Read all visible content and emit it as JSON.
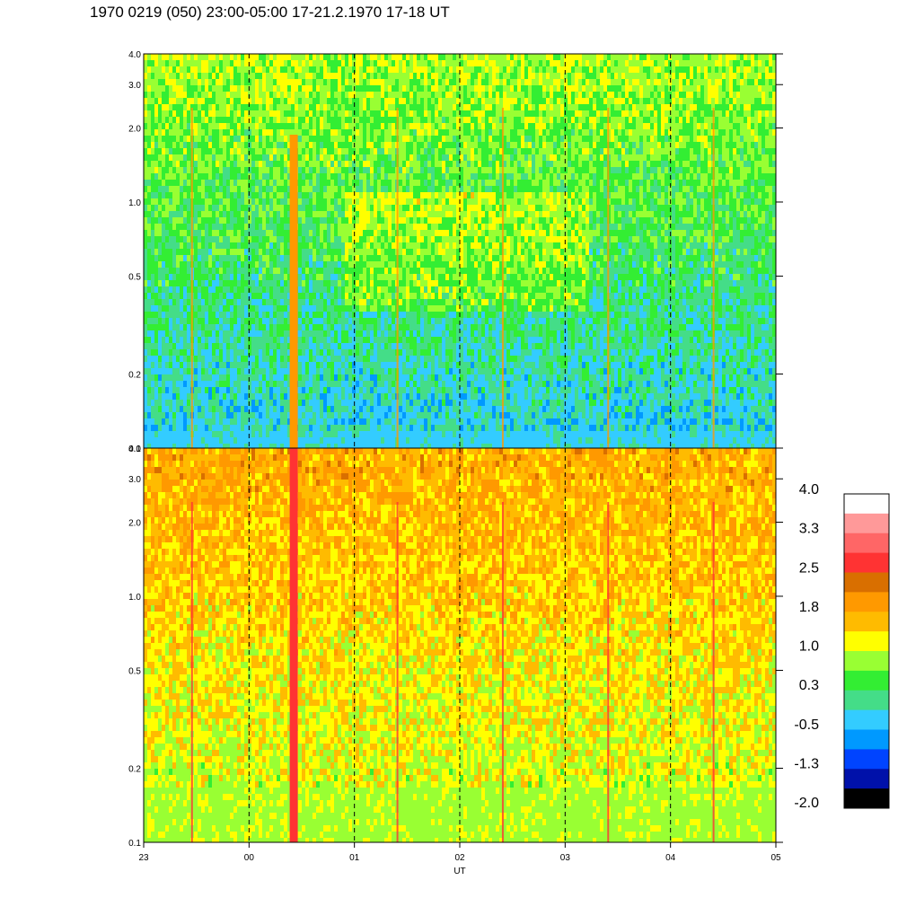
{
  "title": "1970 0219 (050) 23:00-05:00 17-21.2.1970  17-18 UT",
  "chart_data": {
    "type": "heatmap",
    "title": "1970 0219 (050) 23:00-05:00 17-21.2.1970  17-18 UT",
    "xlabel": "UT",
    "x_ticks": [
      "23",
      "00",
      "01",
      "02",
      "03",
      "04",
      "05"
    ],
    "x_range_hours": [
      23,
      29
    ],
    "grid": "dashed vertical lines at each hour",
    "panels": [
      {
        "name": "upper",
        "y_scale": "log",
        "ylim": [
          0.1,
          4.0
        ],
        "y_ticks": [
          {
            "value": 0.1,
            "label": "0.1"
          },
          {
            "value": 0.2,
            "label": "0.2"
          },
          {
            "value": 0.5,
            "label": "0.5"
          },
          {
            "value": 1.0,
            "label": "1.0"
          },
          {
            "value": 2.0,
            "label": "2.0"
          },
          {
            "value": 3.0,
            "label": "3.0"
          },
          {
            "value": 4.0,
            "label": "4.0"
          }
        ],
        "dominant_levels": "-0.5 to 1.0 (cyan/green), yellow patches near 01-03 UT at 0.3-0.8",
        "highlight_streak_ut": 23.4
      },
      {
        "name": "lower",
        "y_scale": "log",
        "ylim": [
          0.1,
          4.0
        ],
        "y_ticks": [
          {
            "value": 0.1,
            "label": "0.1"
          },
          {
            "value": 0.2,
            "label": "0.2"
          },
          {
            "value": 0.5,
            "label": "0.5"
          },
          {
            "value": 1.0,
            "label": "1.0"
          },
          {
            "value": 2.0,
            "label": "2.0"
          },
          {
            "value": 3.0,
            "label": "3.0"
          },
          {
            "value": 4.0,
            "label": "4.0"
          }
        ],
        "dominant_levels": "1.0 to 1.8 (yellow/orange), peaks 2.5 near 00:25 UT",
        "highlight_streak_ut": 23.4
      }
    ],
    "colorbar": {
      "labels": [
        "4.0",
        "3.3",
        "2.5",
        "1.8",
        "1.0",
        "0.3",
        "-0.5",
        "-1.3",
        "-2.0"
      ],
      "colors": [
        "#ffffff",
        "#ff9999",
        "#ff6666",
        "#ff3333",
        "#d96f00",
        "#ff9900",
        "#ffbb00",
        "#ffff00",
        "#99ff33",
        "#33ee33",
        "#44dd88",
        "#33ccff",
        "#0099ff",
        "#0044ff",
        "#0011aa",
        "#000000"
      ]
    }
  }
}
